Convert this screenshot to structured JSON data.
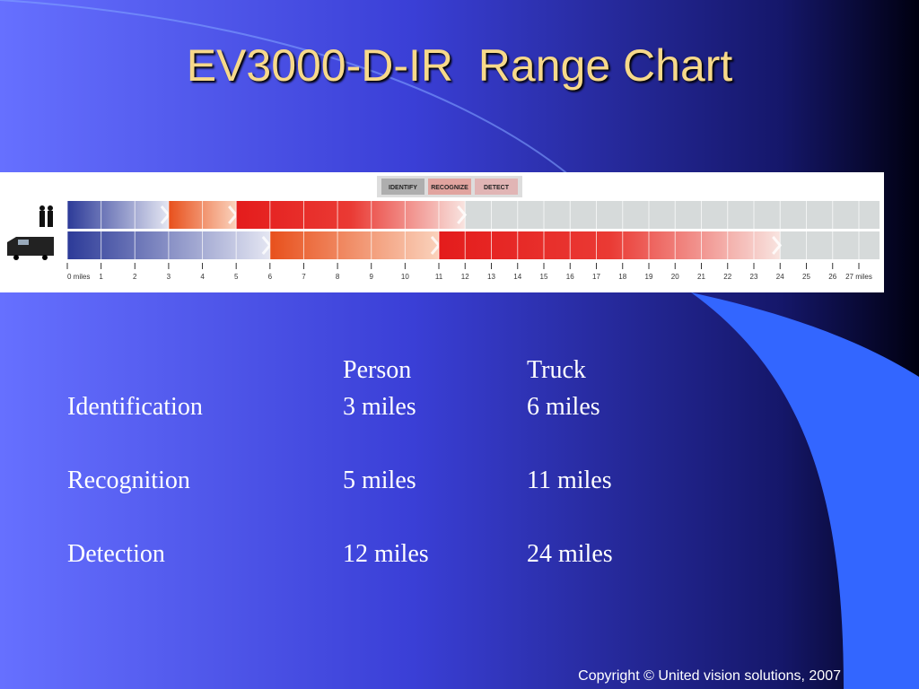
{
  "title": "EV3000-D-IR  Range Chart",
  "range_chart": {
    "legend": [
      "IDENTIFY",
      "RECOGNIZE",
      "DETECT"
    ],
    "ticks": [
      {
        "value": 0,
        "label": "0 miles"
      },
      1,
      2,
      3,
      4,
      5,
      6,
      7,
      8,
      9,
      10,
      11,
      12,
      13,
      14,
      15,
      16,
      17,
      18,
      19,
      20,
      21,
      22,
      23,
      24,
      25,
      26,
      {
        "value": 27,
        "label": "27 miles"
      }
    ],
    "bars": [
      [
        3,
        5,
        12
      ],
      [
        6,
        11,
        24
      ]
    ]
  },
  "table": {
    "header": [
      "Person",
      "Truck"
    ],
    "rows": [
      [
        "Identification",
        "3 miles",
        "6 miles"
      ],
      [
        "Recognition",
        "5 miles",
        "11 miles"
      ],
      [
        "Detection",
        "12 miles",
        "24 miles"
      ]
    ]
  },
  "copyright": "Copyright © United vision solutions, 2007"
}
